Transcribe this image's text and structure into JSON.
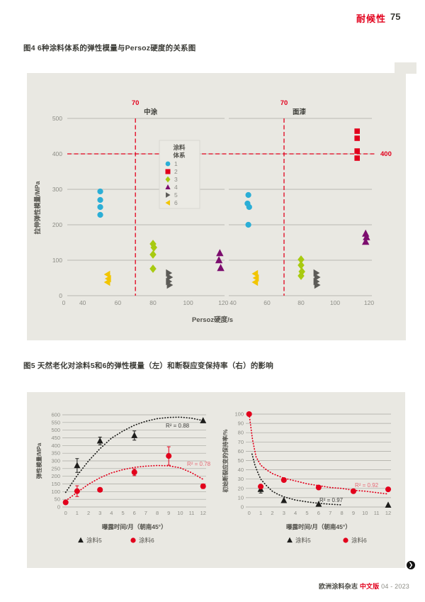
{
  "page": {
    "background": "#ffffff",
    "accent_red": "#e2001c",
    "panel_gray": "#e9e8e2"
  },
  "header": {
    "section_label": "耐候性",
    "page_number": "75"
  },
  "figure4": {
    "caption": "图4 6种涂料体系的弹性模量与Persoz硬度的关系图"
  },
  "figure5": {
    "caption": "图5 天然老化对涂料5和6的弹性模量（左）和断裂应变保持率（右）的影响"
  },
  "footer": {
    "journal": "欧洲涂料杂志",
    "edition": "中文版",
    "issue": "04 - 2023",
    "next_icon": "❯"
  },
  "chart_data": [
    {
      "id": "fig4",
      "type": "scatter",
      "xlabel": "Persoz硬度/s",
      "ylabel": "拉伸弹性模量/MPa",
      "ylim": [
        0,
        500
      ],
      "yticks": [
        0,
        100,
        200,
        300,
        400,
        500
      ],
      "grid": "on",
      "threshold_y": 400,
      "threshold_y_label": "400",
      "panels": [
        {
          "title": "中涂",
          "threshold_x": 70,
          "threshold_x_label": "70",
          "xticks": [
            0,
            40,
            60,
            80,
            100,
            120
          ]
        },
        {
          "title": "面漆",
          "threshold_x": 70,
          "threshold_x_label": "70",
          "xticks": [
            40,
            60,
            80,
            100,
            120
          ]
        }
      ],
      "legend": {
        "title_lines": [
          "涂料",
          "体系"
        ],
        "position": "center-left",
        "items": [
          {
            "label": "1",
            "marker": "circle",
            "color": "#2baed6"
          },
          {
            "label": "2",
            "marker": "square",
            "color": "#e2001c"
          },
          {
            "label": "3",
            "marker": "diamond",
            "color": "#a8ca10"
          },
          {
            "label": "4",
            "marker": "triangle-up",
            "color": "#7c0d6e"
          },
          {
            "label": "5",
            "marker": "triangle-right",
            "color": "#5c5b57"
          },
          {
            "label": "6",
            "marker": "triangle-left",
            "color": "#f2c500"
          }
        ]
      },
      "series": [
        {
          "system": "1",
          "marker": "circle",
          "color": "#2baed6",
          "panel1": [
            [
              50,
              294
            ],
            [
              50,
              270
            ],
            [
              50,
              250
            ],
            [
              50,
              228
            ]
          ],
          "panel2": [
            [
              49,
              284
            ],
            [
              48.5,
              260
            ],
            [
              49.5,
              250
            ],
            [
              49,
              200
            ]
          ]
        },
        {
          "system": "2",
          "marker": "square",
          "color": "#e2001c",
          "panel1": [],
          "panel2": [
            [
              113,
              464
            ],
            [
              113,
              444
            ],
            [
              113,
              408
            ],
            [
              113,
              388
            ]
          ]
        },
        {
          "system": "3",
          "marker": "diamond",
          "color": "#a8ca10",
          "panel1": [
            [
              80,
              146
            ],
            [
              80.5,
              136
            ],
            [
              80,
              116
            ],
            [
              80,
              76
            ]
          ],
          "panel2": [
            [
              80,
              102
            ],
            [
              80,
              86
            ],
            [
              80.5,
              68
            ],
            [
              80,
              56
            ]
          ]
        },
        {
          "system": "4",
          "marker": "triangle-up",
          "color": "#7c0d6e",
          "panel1": [
            [
              118,
              120
            ],
            [
              117.5,
              100
            ],
            [
              118.5,
              78
            ]
          ],
          "panel2": [
            [
              118,
              175
            ],
            [
              118.5,
              165
            ],
            [
              118,
              152
            ]
          ]
        },
        {
          "system": "5",
          "marker": "triangle-right",
          "color": "#5c5b57",
          "panel1": [
            [
              89,
              64
            ],
            [
              89.5,
              52
            ],
            [
              89,
              40
            ],
            [
              89.5,
              30
            ]
          ],
          "panel2": [
            [
              89,
              64
            ],
            [
              89.5,
              52
            ],
            [
              89,
              40
            ],
            [
              89.5,
              30
            ]
          ]
        },
        {
          "system": "6",
          "marker": "triangle-left",
          "color": "#f2c500",
          "panel1": [
            [
              54,
              60
            ],
            [
              54.5,
              48
            ],
            [
              54,
              38
            ]
          ],
          "panel2": [
            [
              53,
              62
            ],
            [
              53.5,
              50
            ],
            [
              53,
              38
            ]
          ]
        }
      ]
    },
    {
      "id": "fig5-left",
      "type": "scatter-line",
      "xlabel": "曝露时间/月（朝南45°）",
      "ylabel": "弹性模量/MPa",
      "ylim": [
        0,
        600
      ],
      "ytick_step": 50,
      "xticks": [
        0,
        1,
        2,
        3,
        4,
        5,
        6,
        7,
        8,
        9,
        10,
        11,
        12
      ],
      "grid": "on",
      "series": [
        {
          "name": "涂料5",
          "marker": "triangle-up",
          "color": "#1d1d1b",
          "r2_label": "R² = 0.88",
          "points": [
            [
              1,
              270
            ],
            [
              3,
              430
            ],
            [
              6,
              465
            ],
            [
              12,
              562
            ]
          ],
          "errors": [
            45,
            25,
            30,
            0
          ],
          "trend": [
            [
              0,
              95
            ],
            [
              1,
              205
            ],
            [
              2,
              300
            ],
            [
              3,
              380
            ],
            [
              4,
              448
            ],
            [
              5,
              495
            ],
            [
              6,
              532
            ],
            [
              7,
              558
            ],
            [
              8,
              575
            ],
            [
              9,
              583
            ],
            [
              10,
              585
            ],
            [
              11,
              578
            ],
            [
              12,
              562
            ]
          ]
        },
        {
          "name": "涂料6",
          "marker": "circle",
          "color": "#e2001c",
          "r2_label": "R² = 0.78",
          "points": [
            [
              0,
              30
            ],
            [
              1,
              103
            ],
            [
              3,
              112
            ],
            [
              6,
              226
            ],
            [
              9,
              332
            ],
            [
              12,
              135
            ]
          ],
          "errors": [
            0,
            35,
            12,
            22,
            60,
            15
          ],
          "trend": [
            [
              0,
              40
            ],
            [
              1,
              95
            ],
            [
              2,
              148
            ],
            [
              3,
              190
            ],
            [
              4,
              222
            ],
            [
              5,
              243
            ],
            [
              6,
              258
            ],
            [
              7,
              266
            ],
            [
              8,
              270
            ],
            [
              9,
              268
            ],
            [
              10,
              255
            ],
            [
              11,
              223
            ],
            [
              12,
              180
            ]
          ]
        }
      ],
      "legend": [
        {
          "label": "涂料5",
          "marker": "triangle-up",
          "color": "#1d1d1b"
        },
        {
          "label": "涂料6",
          "marker": "circle",
          "color": "#e2001c"
        }
      ]
    },
    {
      "id": "fig5-right",
      "type": "scatter-line",
      "xlabel": "曝露时间/月（朝南45°）",
      "ylabel": "初始断裂应变的保持率/%",
      "ylim": [
        0,
        100
      ],
      "ytick_step": 10,
      "xticks": [
        0,
        1,
        2,
        3,
        4,
        5,
        6,
        7,
        8,
        9,
        10,
        11,
        12
      ],
      "grid": "on",
      "series": [
        {
          "name": "涂料5",
          "marker": "triangle-up",
          "color": "#1d1d1b",
          "r2_label": "R² = 0.97",
          "points": [
            [
              1,
              19
            ],
            [
              3,
              7
            ],
            [
              6,
              3
            ],
            [
              12,
              2
            ]
          ],
          "errors": [
            4,
            0,
            0,
            0
          ],
          "trend": [
            [
              0.25,
              57
            ],
            [
              0.5,
              45
            ],
            [
              0.75,
              37
            ],
            [
              1,
              30
            ],
            [
              1.5,
              23
            ],
            [
              2,
              17
            ],
            [
              2.5,
              13.5
            ],
            [
              3,
              11
            ],
            [
              4,
              7.5
            ],
            [
              5,
              5.5
            ],
            [
              6,
              4
            ],
            [
              7,
              3
            ],
            [
              8,
              2.3
            ]
          ]
        },
        {
          "name": "涂料6",
          "marker": "circle",
          "color": "#e2001c",
          "r2_label": "R² = 0.92",
          "points": [
            [
              0,
              100
            ],
            [
              1,
              22
            ],
            [
              3,
              29
            ],
            [
              6,
              21
            ],
            [
              9,
              17
            ],
            [
              12,
              19
            ]
          ],
          "errors": [
            0,
            0,
            0,
            0,
            0,
            0
          ],
          "trend": [
            [
              0,
              100
            ],
            [
              0.3,
              72
            ],
            [
              0.6,
              54
            ],
            [
              1,
              45
            ],
            [
              1.5,
              40
            ],
            [
              2,
              36
            ],
            [
              3,
              31
            ],
            [
              4,
              28
            ],
            [
              5,
              25
            ],
            [
              6,
              23
            ],
            [
              7,
              21
            ],
            [
              8,
              20
            ],
            [
              9,
              18
            ],
            [
              10,
              17
            ],
            [
              11,
              15.5
            ],
            [
              12,
              14
            ]
          ]
        }
      ],
      "legend": [
        {
          "label": "涂料5",
          "marker": "triangle-up",
          "color": "#1d1d1b"
        },
        {
          "label": "涂料6",
          "marker": "circle",
          "color": "#e2001c"
        }
      ]
    }
  ]
}
